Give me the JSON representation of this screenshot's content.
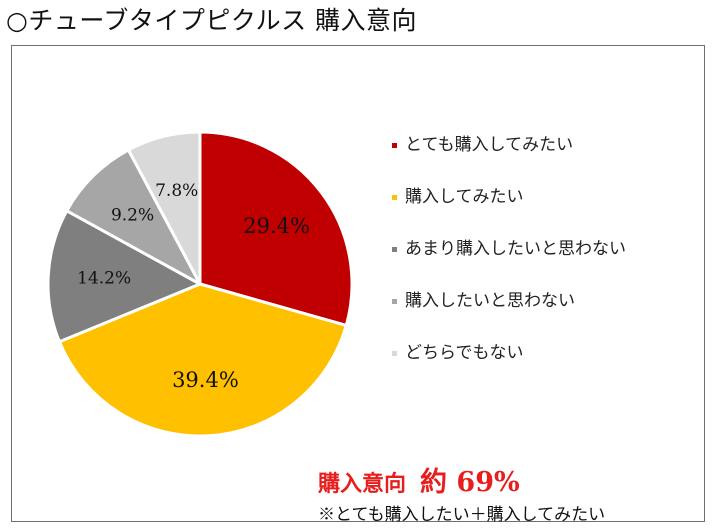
{
  "title": "○チューブタイプピクルス 購入意向",
  "chart_data": {
    "type": "pie",
    "start_angle_deg": 0,
    "direction": "clockwise",
    "slices": [
      {
        "label": "とても購入してみたい",
        "value": 29.4,
        "value_label": "29.4%",
        "color": "#c00000",
        "label_color": "#111111",
        "label_size": 21
      },
      {
        "label": "購入してみたい",
        "value": 39.4,
        "value_label": "39.4%",
        "color": "#ffc000",
        "label_color": "#111111",
        "label_size": 21
      },
      {
        "label": "あまり購入したいと思わない",
        "value": 14.2,
        "value_label": "14.2%",
        "color": "#7f7f7f",
        "label_color": "#111111",
        "label_size": 17
      },
      {
        "label": "購入したいと思わない",
        "value": 9.2,
        "value_label": "9.2%",
        "color": "#a6a6a6",
        "label_color": "#111111",
        "label_size": 17
      },
      {
        "label": "どちらでもない",
        "value": 7.8,
        "value_label": "7.8%",
        "color": "#d9d9d9",
        "label_color": "#111111",
        "label_size": 17
      }
    ],
    "legend_position": "right"
  },
  "summary": {
    "label": "購入意向",
    "value": "約 69%",
    "note": "※とても購入したい＋購入してみたい"
  }
}
